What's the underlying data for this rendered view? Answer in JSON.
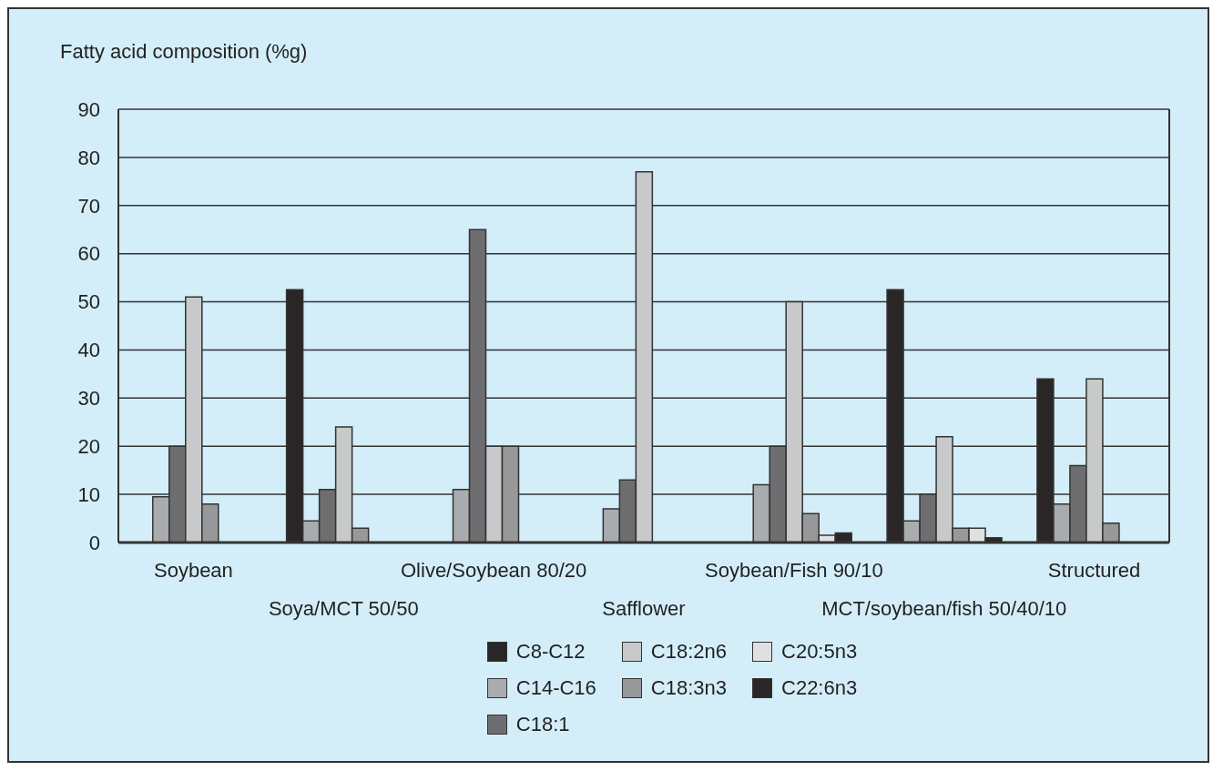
{
  "chart_data": {
    "type": "bar",
    "ylabel": "Fatty acid composition (%g)",
    "categories": [
      "Soybean",
      "Soya/MCT 50/50",
      "Olive/Soybean 80/20",
      "Safflower",
      "Soybean/Fish 90/10",
      "MCT/soybean/fish 50/40/10",
      "Structured"
    ],
    "series": [
      {
        "name": "C8-C12",
        "color": "#2a2627",
        "values": [
          null,
          52.5,
          null,
          null,
          null,
          52.5,
          34
        ]
      },
      {
        "name": "C14-C16",
        "color": "#a9acae",
        "values": [
          9.5,
          4.5,
          11,
          7,
          12,
          4.5,
          8
        ]
      },
      {
        "name": "C18:1",
        "color": "#6e6e70",
        "values": [
          20,
          11,
          65,
          13,
          20,
          10,
          16
        ]
      },
      {
        "name": "C18:2n6",
        "color": "#c8c9ca",
        "values": [
          51,
          24,
          20,
          77,
          50,
          22,
          34
        ]
      },
      {
        "name": "C18:3n3",
        "color": "#97989a",
        "values": [
          8,
          3,
          20,
          null,
          6,
          3,
          4
        ]
      },
      {
        "name": "C20:5n3",
        "color": "#dfe0e1",
        "values": [
          null,
          null,
          null,
          null,
          1.5,
          3,
          null
        ]
      },
      {
        "name": "C22:6n3",
        "color": "#2a2627",
        "values": [
          null,
          null,
          null,
          null,
          2,
          1,
          null
        ]
      }
    ],
    "ylim": [
      0,
      90
    ],
    "yticks": [
      0,
      10,
      20,
      30,
      40,
      50,
      60,
      70,
      80,
      90
    ],
    "grid": "y",
    "legend": "bottom"
  }
}
